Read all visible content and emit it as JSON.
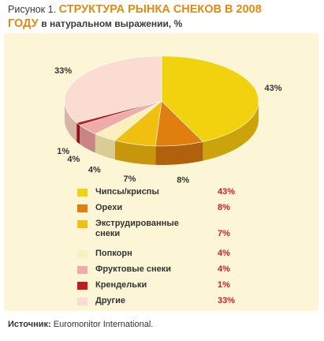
{
  "title": {
    "prefix": "Рисунок 1.",
    "main_line1": "СТРУКТУРА РЫНКА СНЕКОВ В 2008",
    "main_line2": "ГОДУ",
    "subtitle": "в натуральном выражении, %"
  },
  "chart_data": {
    "type": "pie",
    "title": "СТРУКТУРА РЫНКА СНЕКОВ В 2008 ГОДУ",
    "subtitle": "в натуральном выражении, %",
    "categories": [
      "Чипсы/криспы",
      "Орехи",
      "Экструдированные снеки",
      "Попкорн",
      "Фруктовые снеки",
      "Крендельки",
      "Другие"
    ],
    "values": [
      43,
      8,
      7,
      4,
      4,
      1,
      33
    ],
    "value_labels": [
      "43%",
      "8%",
      "7%",
      "4%",
      "4%",
      "1%",
      "33%"
    ],
    "legend_placement": "bottom",
    "colors": {
      "top": [
        "#f2d20e",
        "#e07f10",
        "#f0bf10",
        "#fbf0bd",
        "#efaaaa",
        "#c41c1c",
        "#fbdcd0"
      ],
      "side": [
        "#caa40a",
        "#b1600c",
        "#c6970b",
        "#d9cc95",
        "#c98585",
        "#8e1212",
        "#d8b3a7"
      ]
    }
  },
  "legend": [
    {
      "label": "Чипсы/криспы",
      "value": "43%"
    },
    {
      "label": "Орехи",
      "value": "8%"
    },
    {
      "label": "Экструдированные снеки",
      "value": "7%"
    },
    {
      "label": "Попкорн",
      "value": "4%"
    },
    {
      "label": "Фруктовые снеки",
      "value": "4%"
    },
    {
      "label": "Крендельки",
      "value": "1%"
    },
    {
      "label": "Другие",
      "value": "33%"
    }
  ],
  "source": {
    "label": "Источник:",
    "text": "Euromonitor International."
  }
}
